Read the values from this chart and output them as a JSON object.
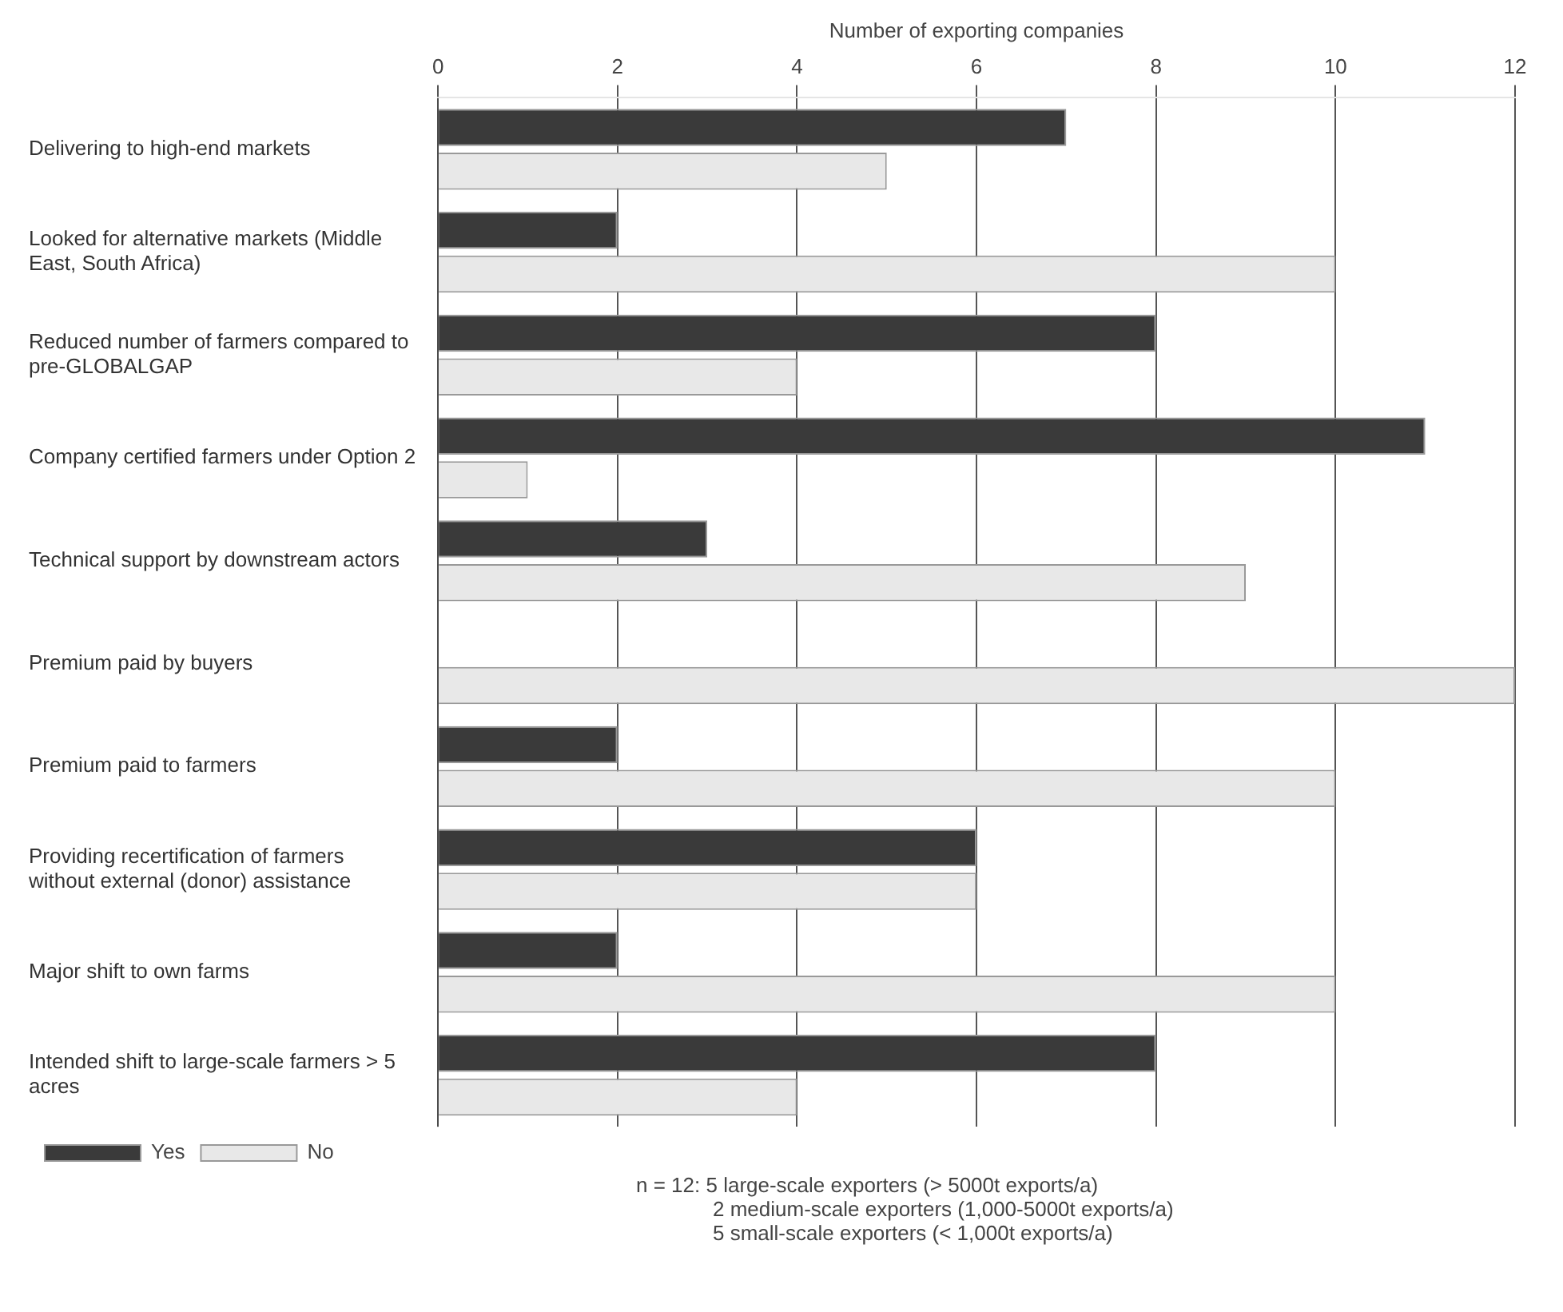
{
  "chart_data": {
    "type": "bar",
    "orientation": "horizontal",
    "xlabel": "Number of exporting companies",
    "categories": [
      "Delivering to high-end markets",
      "Looked for alternative markets (Middle East, South Africa)",
      "Reduced number of farmers compared to pre-GLOBALGAP",
      "Company certified farmers under Option 2",
      "Technical support by downstream actors",
      "Premium paid by buyers",
      "Premium paid to farmers",
      "Providing recertification of farmers without external (donor) assistance",
      "Major shift to own farms",
      "Intended shift to large-scale farmers > 5 acres"
    ],
    "series": [
      {
        "name": "Yes",
        "color": "#3a3a3a",
        "values": [
          7,
          2,
          8,
          11,
          3,
          0,
          2,
          6,
          2,
          8
        ]
      },
      {
        "name": "No",
        "color": "#e8e8e8",
        "values": [
          5,
          10,
          4,
          1,
          9,
          12,
          10,
          6,
          10,
          4
        ]
      }
    ],
    "xlim": [
      0,
      12
    ],
    "xticks": [
      0,
      2,
      4,
      6,
      8,
      10,
      12
    ],
    "grid": "x",
    "legend": "bottom left",
    "annotations": [
      "n = 12: 5 large-scale exporters (> 5000t exports/a)",
      "2 medium-scale exporters (1,000-5000t exports/a)",
      "5 small-scale exporters (< 1,000t exports/a)"
    ]
  }
}
